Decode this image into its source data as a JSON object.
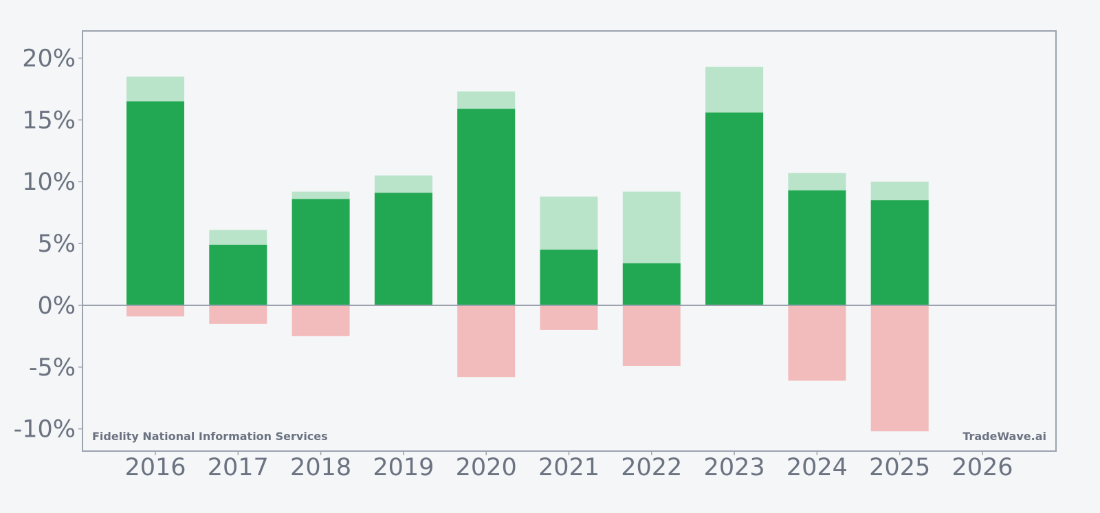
{
  "chart_data": {
    "type": "bar",
    "categories": [
      "2016",
      "2017",
      "2018",
      "2019",
      "2020",
      "2021",
      "2022",
      "2023",
      "2024",
      "2025",
      "2026"
    ],
    "series": [
      {
        "values": [
          16.5,
          4.9,
          8.6,
          9.1,
          15.9,
          4.5,
          3.4,
          15.6,
          9.3,
          8.5,
          null
        ]
      },
      {
        "values": [
          18.5,
          6.1,
          9.2,
          10.5,
          17.3,
          8.8,
          9.2,
          19.3,
          10.7,
          10.0,
          null
        ]
      },
      {
        "values": [
          -0.9,
          -1.5,
          -2.5,
          0,
          -5.8,
          -2.0,
          -4.9,
          0,
          -6.1,
          -10.2,
          null
        ]
      }
    ],
    "yticks": [
      "20%",
      "15%",
      "10%",
      "5%",
      "0%",
      "-5%",
      "-10%"
    ],
    "ytick_values": [
      20,
      15,
      10,
      5,
      0,
      -5,
      -10
    ],
    "ylim": [
      -11.8,
      22.2
    ],
    "title": "",
    "xlabel": "",
    "ylabel": "",
    "grid": false,
    "colors": {
      "main": "#22a852",
      "upper": "#b9e4ca",
      "lower": "#f3bcbc",
      "axis": "#9ca3af",
      "text": "#6b7280"
    }
  },
  "watermark": {
    "left": "Fidelity National Information Services",
    "right": "TradeWave.ai"
  }
}
